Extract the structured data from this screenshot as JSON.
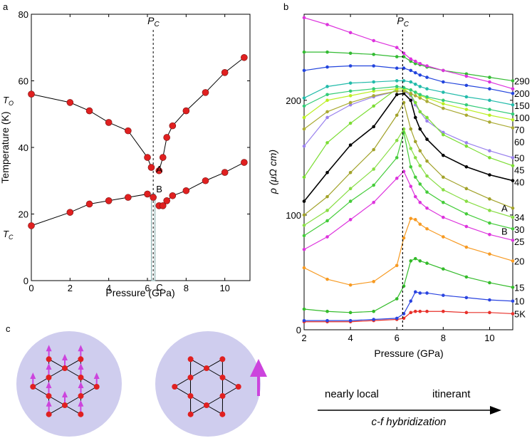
{
  "panels": {
    "a": "a",
    "b": "b",
    "c": "c"
  },
  "chart_data": [
    {
      "type": "scatter",
      "panel": "a",
      "title": "",
      "xlabel": "Pressure (GPa)",
      "ylabel": "Temperature (K)",
      "xlim": [
        0,
        11.3
      ],
      "ylim": [
        0,
        80
      ],
      "xticks": [
        0,
        2,
        4,
        6,
        8,
        10
      ],
      "yticks": [
        0,
        20,
        40,
        60,
        80
      ],
      "pc_label": "P",
      "pc_sub": "C",
      "pc_value": 6.3,
      "point_labels": [
        "A",
        "B",
        "C"
      ],
      "point_label_x": [
        6.45,
        6.45,
        6.45
      ],
      "point_label_y": [
        32.5,
        26.5,
        -3
      ],
      "to_label": "T",
      "to_sub": "O",
      "tc_label": "T",
      "tc_sub": "C",
      "series": [
        {
          "name": "T_O",
          "x": [
            0,
            2,
            3,
            4,
            5,
            6,
            6.2,
            6.6,
            6.8,
            7.0,
            7.3,
            8,
            9,
            10,
            11
          ],
          "y": [
            56,
            53.5,
            51,
            47.5,
            45,
            37,
            34,
            33,
            37,
            43,
            46.5,
            51,
            56.5,
            62.5,
            67
          ]
        },
        {
          "name": "T_C",
          "x": [
            0,
            2,
            3,
            4,
            5,
            6,
            6.3,
            6.6,
            6.8,
            7.0,
            7.3,
            8,
            9,
            10,
            11
          ],
          "y": [
            16.5,
            20.5,
            23,
            24,
            25,
            26,
            25,
            22.5,
            22.5,
            24,
            25.5,
            27,
            30,
            32.5,
            35.5
          ]
        }
      ]
    },
    {
      "type": "line",
      "panel": "b",
      "title": "",
      "xlabel": "Pressure (GPa)",
      "ylabel": "ρ (μΩ cm)",
      "xlim": [
        2,
        11
      ],
      "ylim": [
        0,
        275
      ],
      "xticks": [
        2,
        4,
        6,
        8,
        10
      ],
      "yticks": [
        0,
        100,
        200
      ],
      "pc_label": "P",
      "pc_sub": "C",
      "pc_value": 6.25,
      "annotations": [
        "A",
        "B"
      ],
      "x": [
        2,
        3,
        4,
        5,
        6,
        6.3,
        6.6,
        6.8,
        7,
        7.3,
        8,
        9,
        10,
        11
      ],
      "series": [
        {
          "name": "5K",
          "color": "#e8302a",
          "values": [
            7,
            7,
            7,
            8,
            9,
            10,
            15,
            16,
            16,
            16,
            16,
            15,
            15,
            14
          ]
        },
        {
          "name": "10",
          "color": "#2a44e0",
          "values": [
            8,
            8,
            8,
            9,
            10,
            14,
            25,
            33,
            32,
            32,
            30,
            28,
            26,
            25
          ]
        },
        {
          "name": "15",
          "color": "#33bb2a",
          "values": [
            18,
            16,
            15,
            16,
            27,
            38,
            60,
            62,
            60,
            58,
            53,
            46,
            41,
            37
          ]
        },
        {
          "name": "20",
          "color": "#f79a22",
          "values": [
            54,
            44,
            39,
            42,
            56,
            80,
            97,
            96,
            92,
            88,
            81,
            72,
            66,
            60
          ]
        },
        {
          "name": "25",
          "color": "#dd33dd",
          "values": [
            70,
            81,
            96,
            111,
            132,
            138,
            125,
            116,
            111,
            106,
            98,
            90,
            83,
            78
          ]
        },
        {
          "name": "30",
          "color": "#44cc3a",
          "values": [
            82,
            95,
            112,
            126,
            150,
            172,
            142,
            133,
            127,
            120,
            111,
            101,
            93,
            88
          ]
        },
        {
          "name": "34",
          "color": "#88dd44",
          "values": [
            91,
            104,
            123,
            140,
            165,
            175,
            158,
            150,
            143,
            134,
            122,
            112,
            104,
            98
          ]
        },
        {
          "name": "A",
          "color": "#a2a22a",
          "values": [
            100,
            116,
            137,
            157,
            187,
            198,
            175,
            164,
            156,
            147,
            133,
            123,
            114,
            106
          ]
        },
        {
          "name": "40",
          "color": "#000000",
          "values": [
            112,
            137,
            161,
            177,
            205,
            206,
            200,
            185,
            175,
            166,
            152,
            142,
            135,
            130
          ]
        },
        {
          "name": "50",
          "color": "#9a82ee",
          "values": [
            160,
            185,
            196,
            203,
            208,
            208,
            204,
            196,
            190,
            182,
            172,
            163,
            156,
            150
          ]
        },
        {
          "name": "45",
          "color": "#7bdd33",
          "values": [
            133,
            163,
            180,
            195,
            210,
            210,
            205,
            198,
            190,
            185,
            170,
            160,
            150,
            143
          ]
        },
        {
          "name": "60",
          "color": "#aaaa33",
          "values": [
            175,
            190,
            198,
            204,
            208,
            208,
            206,
            204,
            202,
            199,
            193,
            187,
            181,
            176
          ]
        },
        {
          "name": "70",
          "color": "#bbee22",
          "values": [
            185,
            200,
            204,
            208,
            210,
            210,
            209,
            207,
            204,
            202,
            197,
            192,
            187,
            183
          ]
        },
        {
          "name": "100",
          "color": "#33cc77",
          "values": [
            195,
            205,
            208,
            210,
            212,
            211,
            209,
            207,
            205,
            203,
            200,
            196,
            192,
            188
          ]
        },
        {
          "name": "150",
          "color": "#22bbaa",
          "values": [
            202,
            212,
            215,
            216,
            217,
            217,
            216,
            214,
            212,
            210,
            207,
            203,
            200,
            196
          ]
        },
        {
          "name": "200",
          "color": "#2244dd",
          "values": [
            226,
            229,
            230,
            230,
            228,
            228,
            226,
            224,
            222,
            220,
            216,
            213,
            210,
            206
          ]
        },
        {
          "name": "290",
          "color": "#33bb33",
          "values": [
            242,
            242,
            241,
            240,
            238,
            238,
            234,
            232,
            231,
            229,
            226,
            223,
            220,
            217
          ]
        },
        {
          "name": "",
          "color": "#dd33dd",
          "values": [
            272,
            266,
            259,
            252,
            246,
            241,
            236,
            234,
            232,
            230,
            226,
            221,
            216,
            210
          ]
        }
      ],
      "right_labels": [
        "290",
        "200",
        "150",
        "100",
        "70",
        "60",
        "50",
        "45",
        "40",
        "A",
        "34",
        "30",
        "B",
        "25",
        "20",
        "15",
        "10",
        "5K"
      ]
    }
  ],
  "diagram": {
    "arrow_left": "nearly local",
    "arrow_right": "itinerant",
    "arrow_caption": "c-f hybridization",
    "colors": {
      "disc": "#cfcdee",
      "atom": "#e02020",
      "spin": "#cc44dd"
    }
  }
}
